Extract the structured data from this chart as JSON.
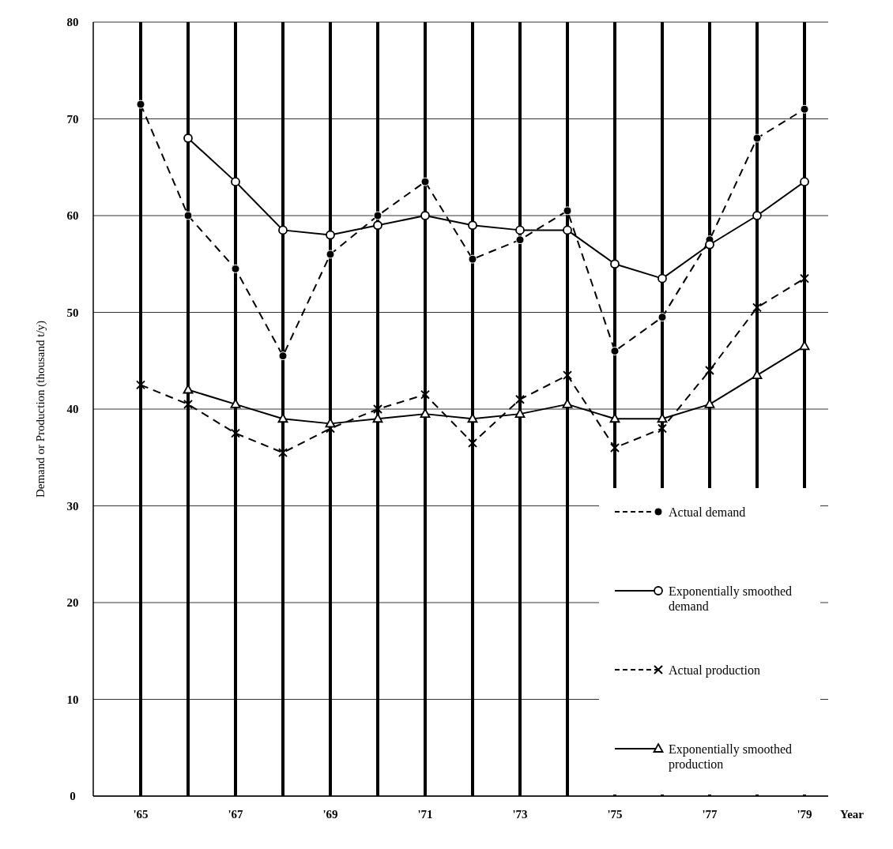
{
  "chart_data": {
    "type": "line",
    "xlabel": "Year",
    "ylabel": "Demand or Production (thousand t/y)",
    "x": [
      1965,
      1966,
      1967,
      1968,
      1969,
      1970,
      1971,
      1972,
      1973,
      1974,
      1975,
      1976,
      1977,
      1978,
      1979
    ],
    "xlim": [
      1964,
      1979.5
    ],
    "xticks": [
      {
        "value": 1965,
        "label": "'65"
      },
      {
        "value": 1966,
        "label": null
      },
      {
        "value": 1967,
        "label": "'67"
      },
      {
        "value": 1968,
        "label": null
      },
      {
        "value": 1969,
        "label": "'69"
      },
      {
        "value": 1970,
        "label": null
      },
      {
        "value": 1971,
        "label": "'71"
      },
      {
        "value": 1972,
        "label": null
      },
      {
        "value": 1973,
        "label": "'73"
      },
      {
        "value": 1974,
        "label": null
      },
      {
        "value": 1975,
        "label": "'75"
      },
      {
        "value": 1976,
        "label": null
      },
      {
        "value": 1977,
        "label": "'77"
      },
      {
        "value": 1978,
        "label": null
      },
      {
        "value": 1979,
        "label": "'79"
      }
    ],
    "ylim": [
      0,
      80
    ],
    "yticks": [
      0,
      10,
      20,
      30,
      40,
      50,
      60,
      70,
      80
    ],
    "grid": true,
    "legend": "bottom right",
    "series": [
      {
        "name": "Actual demand",
        "color": "#000000",
        "marker": "circle",
        "line_style": "dashed",
        "values": [
          71.5,
          60,
          54.5,
          45.5,
          56,
          60,
          63.5,
          55.5,
          57.5,
          60.5,
          46,
          49.5,
          57.5,
          68,
          71
        ]
      },
      {
        "name": "Exponentially smoothed demand",
        "color": "#000000",
        "marker": "circle",
        "line_style": "solid",
        "values": [
          null,
          68,
          63.5,
          58.5,
          58,
          59,
          60,
          59,
          58.5,
          58.5,
          55,
          53.5,
          57,
          60,
          63.5
        ]
      },
      {
        "name": "Actual production",
        "color": "#000000",
        "marker": "cross",
        "line_style": "dashed",
        "values": [
          42.5,
          40.5,
          37.5,
          35.5,
          38,
          40,
          41.5,
          36.5,
          41,
          43.5,
          36,
          38,
          44,
          50.5,
          53.5
        ]
      },
      {
        "name": "Exponentially smoothed production",
        "color": "#000000",
        "marker": "triangle",
        "line_style": "solid",
        "values": [
          null,
          42,
          40.5,
          39,
          38.5,
          39,
          39.5,
          39,
          39.5,
          40.5,
          39,
          39,
          40.5,
          43.5,
          46.5
        ]
      }
    ]
  }
}
